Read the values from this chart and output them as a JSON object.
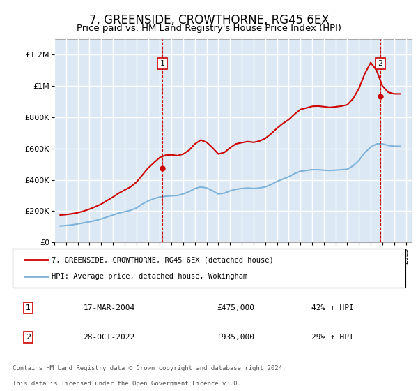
{
  "title": "7, GREENSIDE, CROWTHORNE, RG45 6EX",
  "subtitle": "Price paid vs. HM Land Registry's House Price Index (HPI)",
  "ylabel_ticks": [
    "£0",
    "£200K",
    "£400K",
    "£600K",
    "£800K",
    "£1M",
    "£1.2M"
  ],
  "ytick_values": [
    0,
    200000,
    400000,
    600000,
    800000,
    1000000,
    1200000
  ],
  "ylim": [
    0,
    1300000
  ],
  "xlim_start": 1995.0,
  "xlim_end": 2025.5,
  "background_color": "#dce9f5",
  "plot_bg_color": "#dce9f5",
  "red_line_color": "#cc0000",
  "blue_line_color": "#7fb3d9",
  "grid_color": "#ffffff",
  "transaction1": {
    "date_label": "17-MAR-2004",
    "price": 475000,
    "hpi_change": "42% ↑ HPI",
    "marker_x": 2004.21,
    "marker_y": 475000
  },
  "transaction2": {
    "date_label": "28-OCT-2022",
    "price": 935000,
    "hpi_change": "29% ↑ HPI",
    "marker_x": 2022.83,
    "marker_y": 935000
  },
  "legend_red_label": "7, GREENSIDE, CROWTHORNE, RG45 6EX (detached house)",
  "legend_blue_label": "HPI: Average price, detached house, Wokingham",
  "footer_line1": "Contains HM Land Registry data © Crown copyright and database right 2024.",
  "footer_line2": "This data is licensed under the Open Government Licence v3.0.",
  "hpi_data": {
    "years": [
      1995.5,
      1996.0,
      1996.5,
      1997.0,
      1997.5,
      1998.0,
      1998.5,
      1999.0,
      1999.5,
      2000.0,
      2000.5,
      2001.0,
      2001.5,
      2002.0,
      2002.5,
      2003.0,
      2003.5,
      2004.0,
      2004.5,
      2005.0,
      2005.5,
      2006.0,
      2006.5,
      2007.0,
      2007.5,
      2008.0,
      2008.5,
      2009.0,
      2009.5,
      2010.0,
      2010.5,
      2011.0,
      2011.5,
      2012.0,
      2012.5,
      2013.0,
      2013.5,
      2014.0,
      2014.5,
      2015.0,
      2015.5,
      2016.0,
      2016.5,
      2017.0,
      2017.5,
      2018.0,
      2018.5,
      2019.0,
      2019.5,
      2020.0,
      2020.5,
      2021.0,
      2021.5,
      2022.0,
      2022.5,
      2023.0,
      2023.5,
      2024.0,
      2024.5
    ],
    "values": [
      105000,
      108000,
      112000,
      118000,
      125000,
      132000,
      140000,
      150000,
      163000,
      175000,
      188000,
      196000,
      205000,
      220000,
      245000,
      265000,
      280000,
      290000,
      295000,
      298000,
      300000,
      310000,
      325000,
      345000,
      355000,
      348000,
      330000,
      310000,
      315000,
      330000,
      340000,
      345000,
      348000,
      345000,
      348000,
      355000,
      370000,
      390000,
      405000,
      420000,
      440000,
      455000,
      460000,
      465000,
      465000,
      462000,
      460000,
      462000,
      465000,
      468000,
      490000,
      525000,
      575000,
      610000,
      630000,
      630000,
      620000,
      615000,
      615000
    ]
  },
  "price_data": {
    "years": [
      1995.5,
      1996.0,
      1996.5,
      1997.0,
      1997.5,
      1998.0,
      1998.5,
      1999.0,
      1999.5,
      2000.0,
      2000.5,
      2001.0,
      2001.5,
      2002.0,
      2002.5,
      2003.0,
      2003.5,
      2004.0,
      2004.5,
      2005.0,
      2005.5,
      2006.0,
      2006.5,
      2007.0,
      2007.5,
      2008.0,
      2008.5,
      2009.0,
      2009.5,
      2010.0,
      2010.5,
      2011.0,
      2011.5,
      2012.0,
      2012.5,
      2013.0,
      2013.5,
      2014.0,
      2014.5,
      2015.0,
      2015.5,
      2016.0,
      2016.5,
      2017.0,
      2017.5,
      2018.0,
      2018.5,
      2019.0,
      2019.5,
      2020.0,
      2020.5,
      2021.0,
      2021.5,
      2022.0,
      2022.5,
      2023.0,
      2023.5,
      2024.0,
      2024.5
    ],
    "values": [
      175000,
      178000,
      183000,
      190000,
      200000,
      213000,
      228000,
      245000,
      268000,
      290000,
      315000,
      335000,
      355000,
      385000,
      430000,
      475000,
      510000,
      543000,
      558000,
      560000,
      555000,
      565000,
      590000,
      630000,
      655000,
      640000,
      605000,
      565000,
      575000,
      605000,
      630000,
      638000,
      645000,
      640000,
      648000,
      665000,
      695000,
      730000,
      760000,
      785000,
      820000,
      850000,
      860000,
      870000,
      872000,
      868000,
      863000,
      867000,
      872000,
      880000,
      920000,
      985000,
      1080000,
      1150000,
      1100000,
      1000000,
      960000,
      950000,
      950000
    ]
  }
}
